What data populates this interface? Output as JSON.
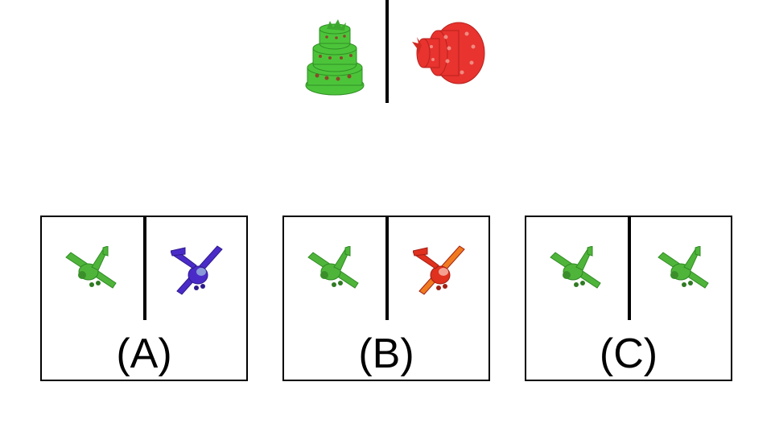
{
  "prompt": {
    "left_object": {
      "icon": "cake-icon",
      "color": "#4cc43a"
    },
    "right_object": {
      "icon": "cake-icon",
      "color": "#e8332f"
    }
  },
  "options": [
    {
      "label": "(A)",
      "left": {
        "icon": "airplane-icon",
        "color": "#4fb53a"
      },
      "right": {
        "icon": "airplane-icon",
        "color": "#4a2bc8"
      }
    },
    {
      "label": "(B)",
      "left": {
        "icon": "airplane-icon",
        "color": "#4fb53a"
      },
      "right": {
        "icon": "airplane-icon",
        "color": "#e0301e"
      }
    },
    {
      "label": "(C)",
      "left": {
        "icon": "airplane-icon",
        "color": "#4fb53a"
      },
      "right": {
        "icon": "airplane-icon",
        "color": "#4fb53a"
      }
    }
  ]
}
